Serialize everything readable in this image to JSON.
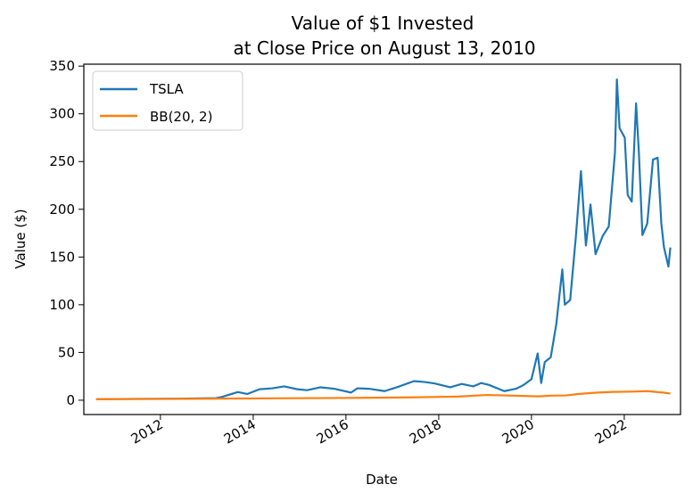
{
  "chart_data": {
    "type": "line",
    "title_line1": "Value of $1 Invested",
    "title_line2": "at Close Price on August 13, 2010",
    "xlabel": "Date",
    "ylabel": "Value ($)",
    "xlim": [
      "2010-05-08",
      "2023-03-20"
    ],
    "ylim": [
      -15,
      352
    ],
    "yticks": [
      0,
      50,
      100,
      150,
      200,
      250,
      300,
      350
    ],
    "xticks": [
      {
        "date": "2012-01-01",
        "label": "2012"
      },
      {
        "date": "2014-01-01",
        "label": "2014"
      },
      {
        "date": "2016-01-01",
        "label": "2016"
      },
      {
        "date": "2018-01-01",
        "label": "2018"
      },
      {
        "date": "2020-01-01",
        "label": "2020"
      },
      {
        "date": "2022-01-01",
        "label": "2022"
      }
    ],
    "grid": false,
    "legend_position": "top-left",
    "series": [
      {
        "name": "TSLA",
        "color": "#1f77b4",
        "points": [
          [
            "2010-08-13",
            1.0
          ],
          [
            "2011-06-01",
            1.4
          ],
          [
            "2012-06-01",
            1.6
          ],
          [
            "2013-03-15",
            2.2
          ],
          [
            "2013-05-01",
            3.5
          ],
          [
            "2013-09-01",
            8.5
          ],
          [
            "2013-11-15",
            6.5
          ],
          [
            "2014-02-20",
            11.5
          ],
          [
            "2014-06-01",
            12.5
          ],
          [
            "2014-09-01",
            14.5
          ],
          [
            "2014-12-15",
            11.5
          ],
          [
            "2015-03-01",
            10.5
          ],
          [
            "2015-06-15",
            13.5
          ],
          [
            "2015-10-01",
            12.0
          ],
          [
            "2016-02-10",
            8.0
          ],
          [
            "2016-04-01",
            12.5
          ],
          [
            "2016-07-01",
            12.0
          ],
          [
            "2016-11-01",
            9.5
          ],
          [
            "2017-02-15",
            14.0
          ],
          [
            "2017-06-20",
            20.0
          ],
          [
            "2017-09-15",
            19.0
          ],
          [
            "2017-12-01",
            17.5
          ],
          [
            "2018-04-01",
            13.5
          ],
          [
            "2018-07-01",
            17.0
          ],
          [
            "2018-10-01",
            14.5
          ],
          [
            "2018-12-01",
            18.0
          ],
          [
            "2019-02-01",
            16.0
          ],
          [
            "2019-06-01",
            9.5
          ],
          [
            "2019-09-01",
            12.0
          ],
          [
            "2019-11-01",
            16.0
          ],
          [
            "2020-01-01",
            22.0
          ],
          [
            "2020-02-19",
            49.0
          ],
          [
            "2020-03-18",
            18.0
          ],
          [
            "2020-04-15",
            40.0
          ],
          [
            "2020-06-01",
            45.0
          ],
          [
            "2020-07-15",
            80.0
          ],
          [
            "2020-08-31",
            137.0
          ],
          [
            "2020-09-20",
            100.0
          ],
          [
            "2020-11-01",
            105.0
          ],
          [
            "2020-12-15",
            170.0
          ],
          [
            "2021-01-25",
            240.0
          ],
          [
            "2021-03-05",
            162.0
          ],
          [
            "2021-04-10",
            205.0
          ],
          [
            "2021-05-20",
            153.0
          ],
          [
            "2021-07-15",
            172.0
          ],
          [
            "2021-09-01",
            182.0
          ],
          [
            "2021-10-20",
            260.0
          ],
          [
            "2021-11-04",
            336.0
          ],
          [
            "2021-11-25",
            285.0
          ],
          [
            "2022-01-05",
            275.0
          ],
          [
            "2022-01-28",
            215.0
          ],
          [
            "2022-03-01",
            208.0
          ],
          [
            "2022-04-04",
            311.0
          ],
          [
            "2022-04-26",
            260.0
          ],
          [
            "2022-05-24",
            173.0
          ],
          [
            "2022-07-01",
            185.0
          ],
          [
            "2022-08-15",
            252.0
          ],
          [
            "2022-09-21",
            254.0
          ],
          [
            "2022-10-20",
            185.0
          ],
          [
            "2022-11-10",
            160.0
          ],
          [
            "2022-12-15",
            140.0
          ],
          [
            "2022-12-30",
            160.0
          ]
        ]
      },
      {
        "name": "BB(20, 2)",
        "color": "#ff7f0e",
        "points": [
          [
            "2010-08-13",
            1.0
          ],
          [
            "2012-01-01",
            1.3
          ],
          [
            "2013-06-01",
            1.7
          ],
          [
            "2014-06-01",
            2.0
          ],
          [
            "2015-06-01",
            2.2
          ],
          [
            "2016-06-01",
            2.5
          ],
          [
            "2017-06-01",
            3.0
          ],
          [
            "2018-06-01",
            3.8
          ],
          [
            "2019-01-15",
            5.5
          ],
          [
            "2019-06-01",
            5.0
          ],
          [
            "2020-03-01",
            4.0
          ],
          [
            "2020-06-01",
            4.8
          ],
          [
            "2020-10-01",
            5.0
          ],
          [
            "2021-01-01",
            6.5
          ],
          [
            "2021-06-01",
            8.0
          ],
          [
            "2021-10-01",
            8.7
          ],
          [
            "2022-03-01",
            9.0
          ],
          [
            "2022-07-01",
            9.5
          ],
          [
            "2022-11-01",
            8.0
          ],
          [
            "2022-12-30",
            7.0
          ]
        ]
      }
    ]
  }
}
